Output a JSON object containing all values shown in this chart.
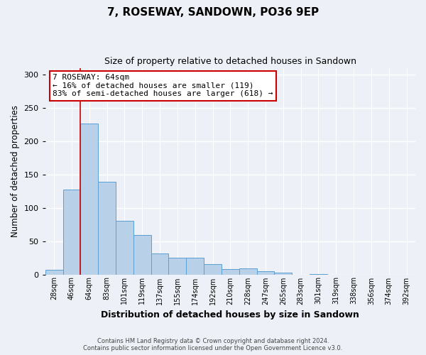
{
  "title": "7, ROSEWAY, SANDOWN, PO36 9EP",
  "subtitle": "Size of property relative to detached houses in Sandown",
  "xlabel": "Distribution of detached houses by size in Sandown",
  "ylabel": "Number of detached properties",
  "bar_labels": [
    "28sqm",
    "46sqm",
    "64sqm",
    "83sqm",
    "101sqm",
    "119sqm",
    "137sqm",
    "155sqm",
    "174sqm",
    "192sqm",
    "210sqm",
    "228sqm",
    "247sqm",
    "265sqm",
    "283sqm",
    "301sqm",
    "319sqm",
    "338sqm",
    "356sqm",
    "374sqm",
    "392sqm"
  ],
  "bar_values": [
    7,
    127,
    226,
    139,
    80,
    59,
    31,
    25,
    25,
    15,
    8,
    9,
    5,
    3,
    0,
    1,
    0,
    0,
    0,
    0,
    0
  ],
  "bar_color": "#b8d0e8",
  "bar_edge_color": "#5a9fd4",
  "bg_color": "#edf1f7",
  "grid_color": "#ffffff",
  "vline_x_index": 2,
  "vline_color": "#cc0000",
  "annotation_title": "7 ROSEWAY: 64sqm",
  "annotation_line1": "← 16% of detached houses are smaller (119)",
  "annotation_line2": "83% of semi-detached houses are larger (618) →",
  "annotation_box_color": "#cc0000",
  "ylim": [
    0,
    310
  ],
  "yticks": [
    0,
    50,
    100,
    150,
    200,
    250,
    300
  ],
  "footer1": "Contains HM Land Registry data © Crown copyright and database right 2024.",
  "footer2": "Contains public sector information licensed under the Open Government Licence v3.0."
}
